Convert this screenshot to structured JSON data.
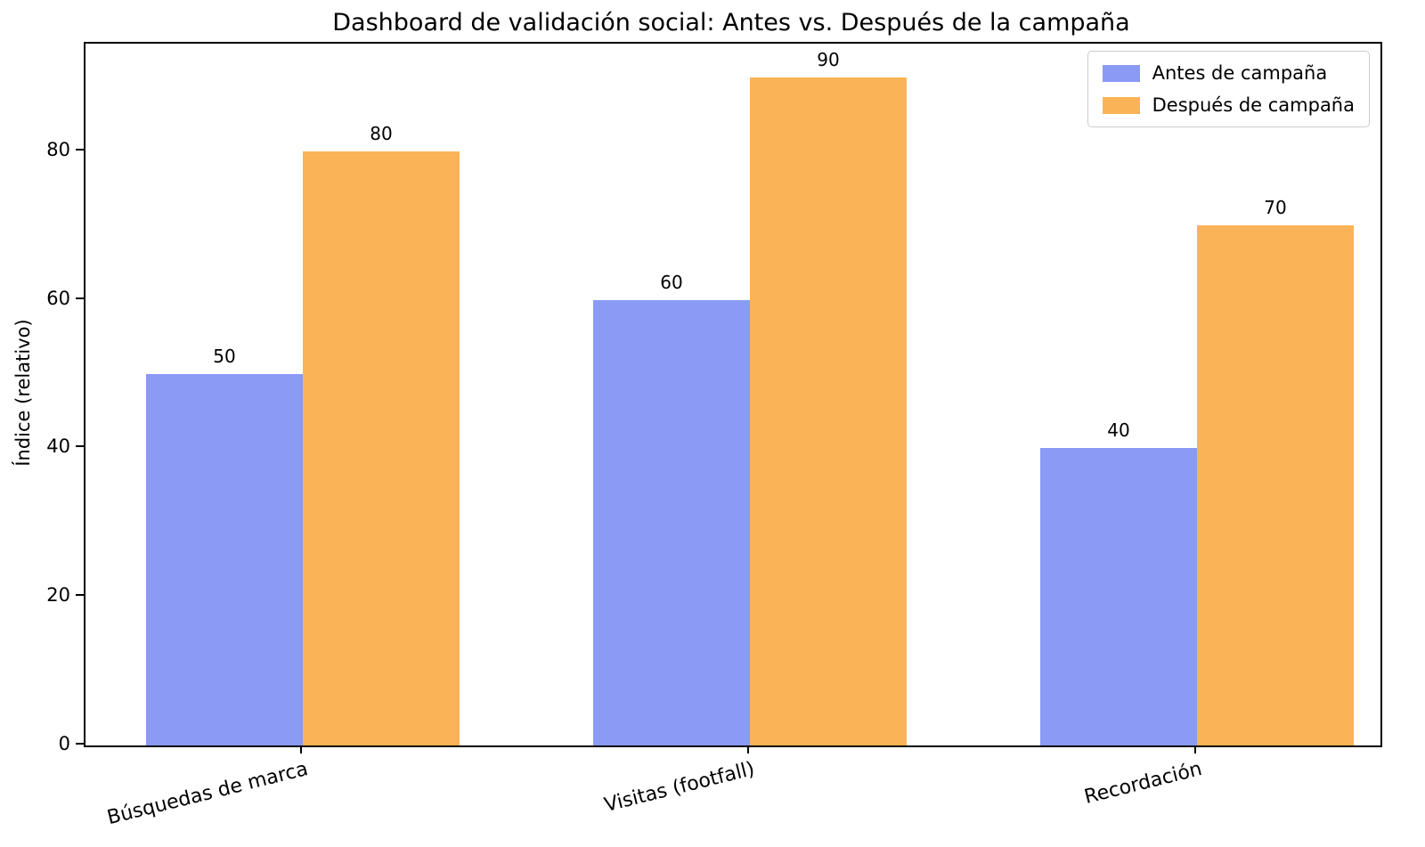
{
  "chart_data": {
    "type": "bar",
    "title": "Dashboard de validación social: Antes vs. Después de la campaña",
    "ylabel": "Índice (relativo)",
    "xlabel": "",
    "categories": [
      "Búsquedas de marca",
      "Visitas (footfall)",
      "Recordación"
    ],
    "series": [
      {
        "name": "Antes de campaña",
        "color": "#8A9AF5",
        "values": [
          50,
          60,
          40
        ]
      },
      {
        "name": "Después de campaña",
        "color": "#FAB357",
        "values": [
          80,
          90,
          70
        ]
      }
    ],
    "yticks": [
      0,
      20,
      40,
      60,
      80
    ],
    "ylim": [
      0,
      94.5
    ],
    "bar_value_labels": [
      [
        50,
        60,
        40
      ],
      [
        80,
        90,
        70
      ]
    ],
    "legend_position": "upper right",
    "grid": false,
    "x_tick_rotation_deg": 14,
    "axis_color": "#000000",
    "background_color": "#ffffff"
  }
}
